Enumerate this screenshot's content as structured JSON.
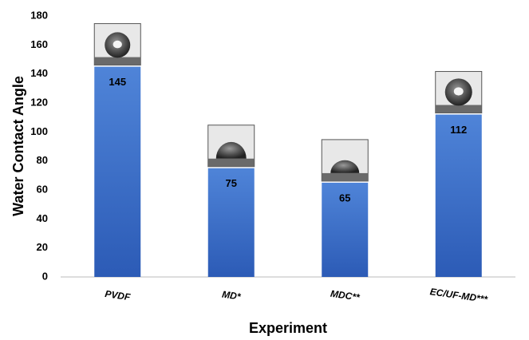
{
  "chart_data": {
    "type": "bar",
    "x_label": "Experiment",
    "y_label": "Water Contact Angle",
    "categories": [
      "PVDF",
      "MD*",
      "MDC**",
      "EC/UF-MD***"
    ],
    "values": [
      145,
      75,
      65,
      112
    ],
    "color": "#3a6cc8",
    "ylim": [
      0,
      180
    ],
    "yticks": [
      0,
      20,
      40,
      60,
      80,
      100,
      120,
      140,
      160,
      180
    ],
    "grid": false
  }
}
